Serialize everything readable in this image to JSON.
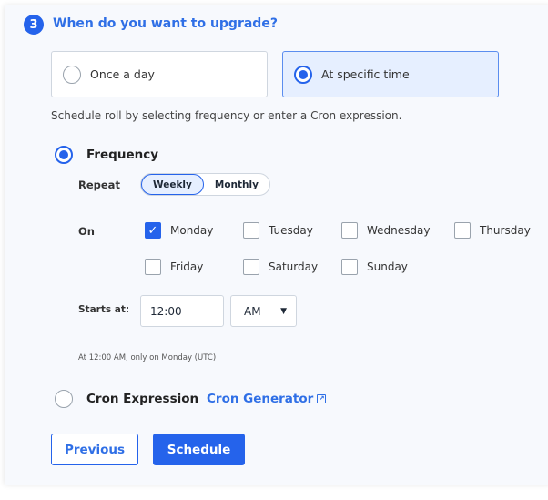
{
  "step": {
    "number": "3",
    "title": "When do you want to upgrade?"
  },
  "mode_options": [
    {
      "label": "Once a day",
      "selected": false
    },
    {
      "label": "At specific time",
      "selected": true
    }
  ],
  "description": "Schedule roll by selecting frequency or enter a Cron expression.",
  "frequency": {
    "label": "Frequency",
    "selected": true,
    "repeat_label": "Repeat",
    "repeat_options": [
      "Weekly",
      "Monthly"
    ],
    "repeat_selected": "Weekly",
    "on_label": "On",
    "days": [
      {
        "label": "Monday",
        "checked": true
      },
      {
        "label": "Tuesday",
        "checked": false
      },
      {
        "label": "Wednesday",
        "checked": false
      },
      {
        "label": "Thursday",
        "checked": false
      },
      {
        "label": "Friday",
        "checked": false
      },
      {
        "label": "Saturday",
        "checked": false
      },
      {
        "label": "Sunday",
        "checked": false
      }
    ],
    "starts_label": "Starts at:",
    "time_value": "12:00",
    "ampm": "AM",
    "summary": "At 12:00 AM, only on Monday (UTC)"
  },
  "cron": {
    "label": "Cron Expression",
    "selected": false,
    "link": "Cron Generator"
  },
  "buttons": {
    "previous": "Previous",
    "schedule": "Schedule"
  },
  "colors": {
    "accent": "#2563eb"
  }
}
